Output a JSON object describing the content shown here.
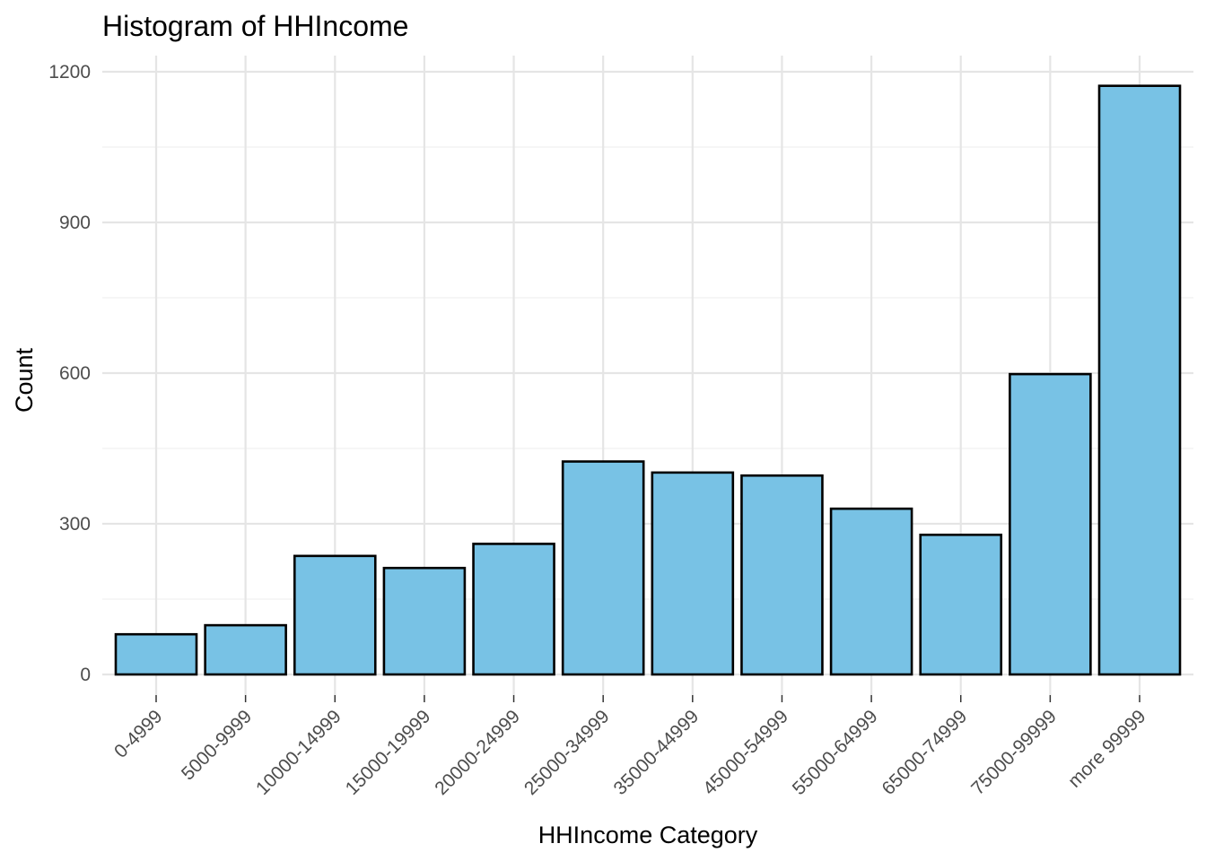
{
  "chart_data": {
    "type": "bar",
    "title": "Histogram of HHIncome",
    "xlabel": "HHIncome Category",
    "ylabel": "Count",
    "categories": [
      "0-4999",
      "5000-9999",
      "10000-14999",
      "15000-19999",
      "20000-24999",
      "25000-34999",
      "35000-44999",
      "45000-54999",
      "55000-64999",
      "65000-74999",
      "75000-99999",
      "more 99999"
    ],
    "values": [
      80,
      98,
      236,
      212,
      260,
      424,
      402,
      396,
      330,
      278,
      598,
      1172
    ],
    "ylim": [
      0,
      1230
    ],
    "yticks": [
      0,
      300,
      600,
      900,
      1200
    ],
    "grid": true,
    "legend": "none",
    "colors": {
      "bar_fill": "#78c2e5",
      "bar_stroke": "#000000",
      "grid": "#e5e5e5"
    }
  }
}
